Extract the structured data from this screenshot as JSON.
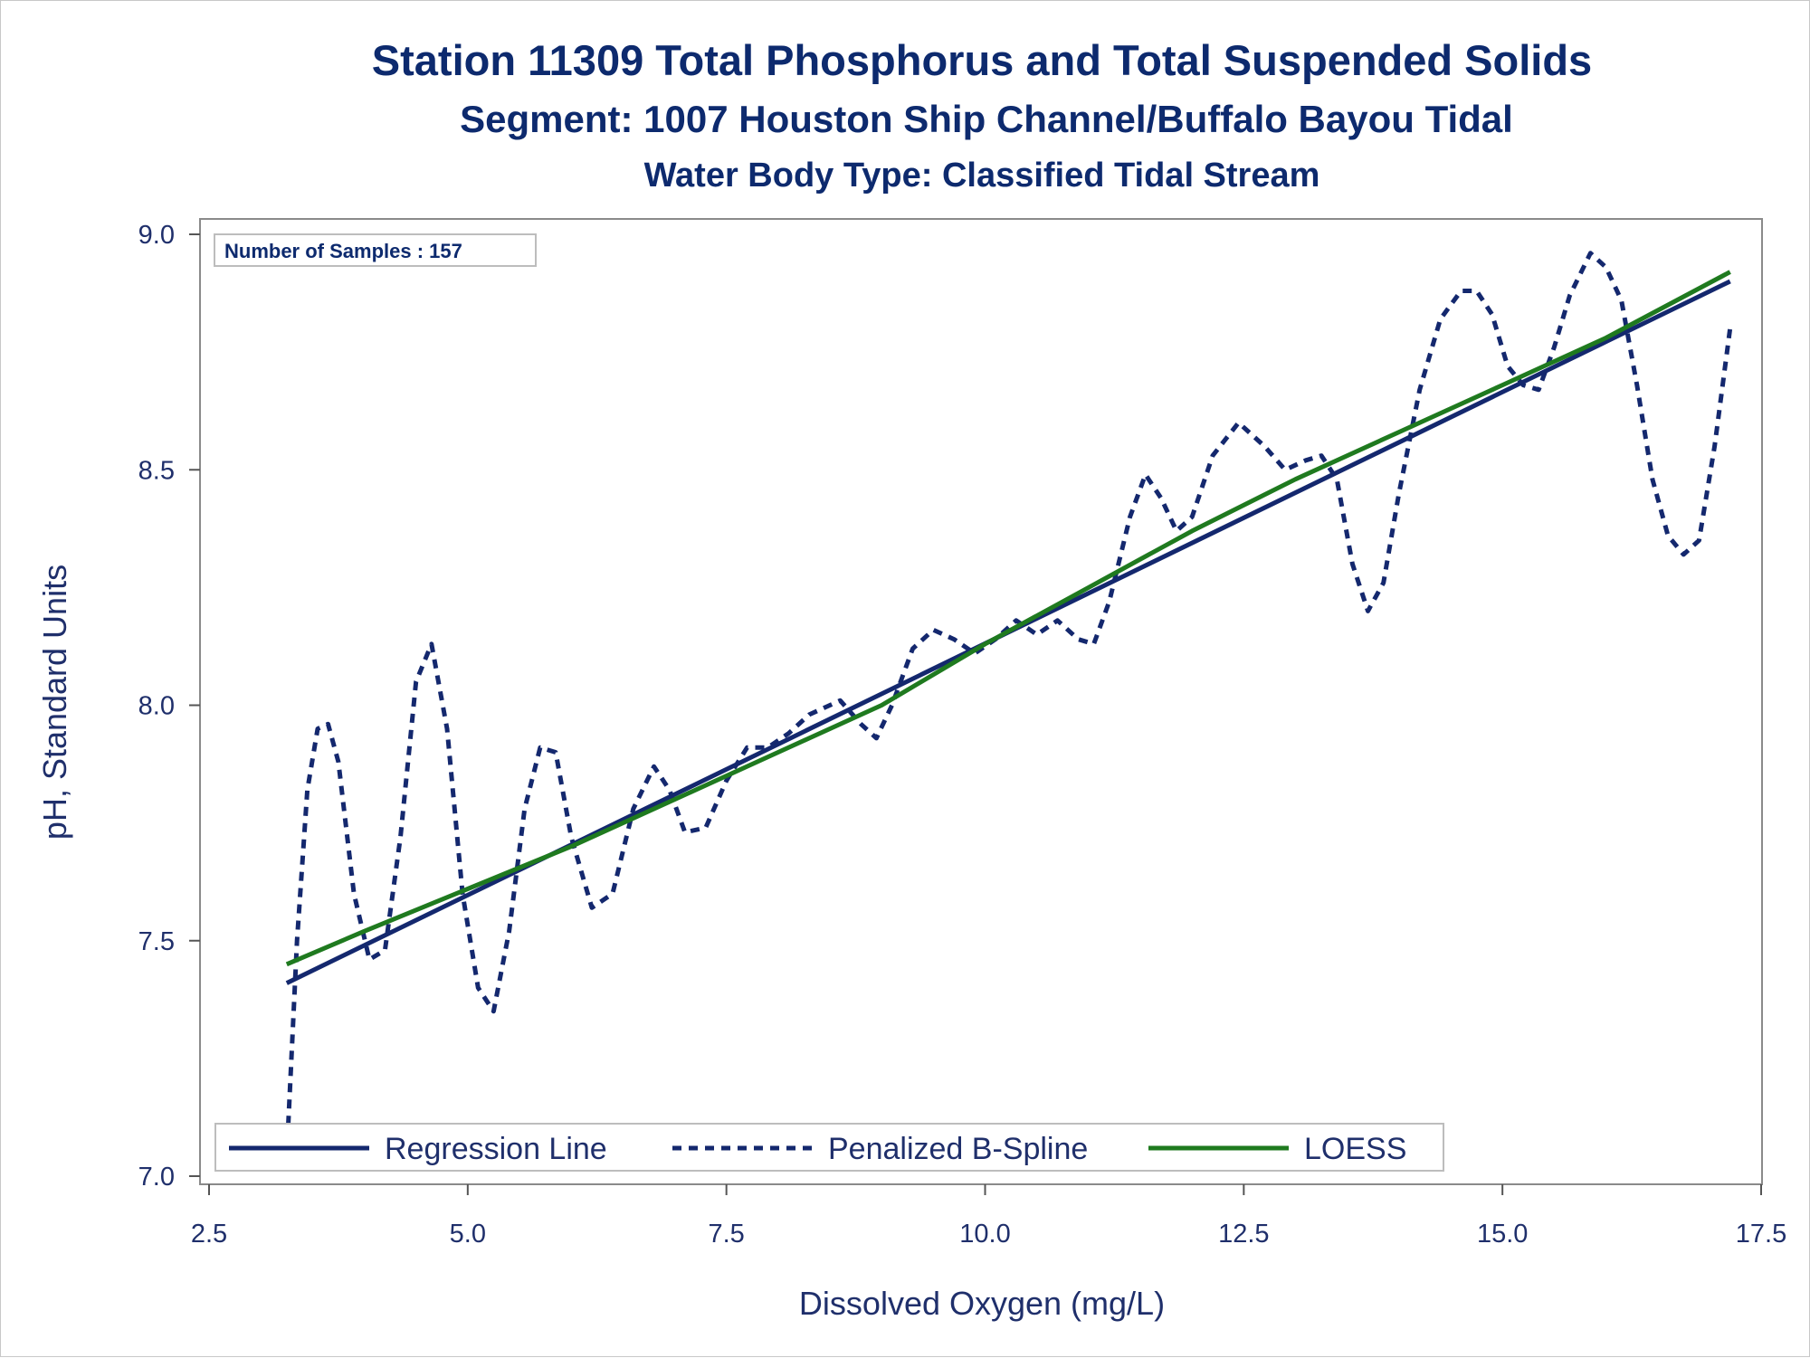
{
  "chart_data": {
    "type": "line",
    "title": "Station 11309  Total Phosphorus and Total Suspended Solids",
    "subtitle": "Segment: 1007  Houston Ship Channel/Buffalo Bayou Tidal",
    "subtitle2": "Water Body Type: Classified Tidal Stream",
    "xlabel": "Dissolved Oxygen (mg/L)",
    "ylabel": "pH, Standard Units",
    "xlim": [
      2.5,
      17.5
    ],
    "ylim": [
      7.0,
      9.0
    ],
    "xticks": [
      "2.5",
      "5.0",
      "7.5",
      "10.0",
      "12.5",
      "15.0",
      "17.5"
    ],
    "yticks": [
      "7.0",
      "7.5",
      "8.0",
      "8.5",
      "9.0"
    ],
    "inset": "Number of Samples : 157",
    "legend_position": "bottom-left inside",
    "series": [
      {
        "name": "Regression Line",
        "style": "solid",
        "color": "#14286e",
        "x": [
          3.25,
          17.2
        ],
        "y": [
          7.41,
          8.9
        ]
      },
      {
        "name": "Penalized B-Spline",
        "style": "dashed",
        "color": "#14286e",
        "x": [
          3.25,
          3.35,
          3.45,
          3.55,
          3.65,
          3.75,
          3.9,
          4.05,
          4.2,
          4.35,
          4.5,
          4.65,
          4.8,
          4.95,
          5.1,
          5.25,
          5.4,
          5.55,
          5.7,
          5.85,
          6.0,
          6.2,
          6.4,
          6.6,
          6.8,
          6.95,
          7.1,
          7.3,
          7.5,
          7.7,
          7.9,
          8.1,
          8.3,
          8.6,
          8.8,
          8.95,
          9.1,
          9.3,
          9.5,
          9.7,
          9.9,
          10.1,
          10.3,
          10.5,
          10.7,
          10.9,
          11.05,
          11.2,
          11.4,
          11.55,
          11.7,
          11.85,
          12.0,
          12.2,
          12.45,
          12.7,
          12.9,
          13.1,
          13.25,
          13.4,
          13.55,
          13.7,
          13.85,
          14.0,
          14.2,
          14.4,
          14.6,
          14.75,
          14.9,
          15.05,
          15.2,
          15.35,
          15.5,
          15.65,
          15.85,
          16.0,
          16.15,
          16.3,
          16.45,
          16.6,
          16.75,
          16.9,
          17.05,
          17.2
        ],
        "y": [
          7.04,
          7.5,
          7.82,
          7.95,
          7.96,
          7.88,
          7.6,
          7.46,
          7.48,
          7.72,
          8.05,
          8.13,
          7.95,
          7.6,
          7.4,
          7.35,
          7.52,
          7.78,
          7.91,
          7.9,
          7.72,
          7.57,
          7.6,
          7.78,
          7.87,
          7.82,
          7.73,
          7.74,
          7.84,
          7.91,
          7.91,
          7.94,
          7.98,
          8.01,
          7.96,
          7.93,
          8.0,
          8.12,
          8.16,
          8.14,
          8.11,
          8.14,
          8.18,
          8.15,
          8.18,
          8.14,
          8.13,
          8.22,
          8.4,
          8.49,
          8.44,
          8.37,
          8.4,
          8.53,
          8.6,
          8.55,
          8.5,
          8.52,
          8.53,
          8.48,
          8.3,
          8.2,
          8.26,
          8.45,
          8.67,
          8.82,
          8.88,
          8.88,
          8.83,
          8.72,
          8.68,
          8.67,
          8.76,
          8.87,
          8.96,
          8.93,
          8.86,
          8.68,
          8.48,
          8.36,
          8.32,
          8.35,
          8.55,
          8.8
        ]
      },
      {
        "name": "LOESS",
        "style": "solid",
        "color": "#1f7a1f",
        "x": [
          3.25,
          4.0,
          5.0,
          6.0,
          7.0,
          8.0,
          9.0,
          10.0,
          11.0,
          12.0,
          13.0,
          14.0,
          15.0,
          16.0,
          17.2
        ],
        "y": [
          7.45,
          7.52,
          7.61,
          7.7,
          7.8,
          7.9,
          8.0,
          8.13,
          8.25,
          8.37,
          8.48,
          8.58,
          8.68,
          8.78,
          8.92
        ]
      }
    ]
  }
}
